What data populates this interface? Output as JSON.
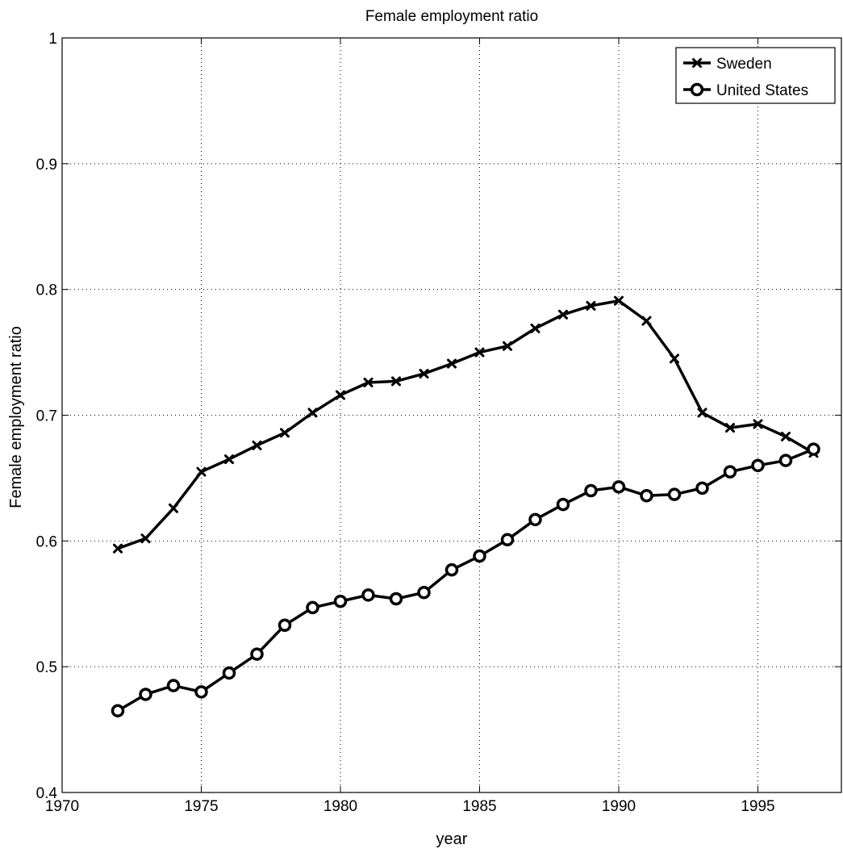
{
  "chart_data": {
    "type": "line",
    "title": "Female employment ratio",
    "xlabel": "year",
    "ylabel": "Female employment ratio",
    "xlim": [
      1970,
      1998
    ],
    "ylim": [
      0.4,
      1.0
    ],
    "xticks": [
      1970,
      1975,
      1980,
      1985,
      1990,
      1995
    ],
    "xtick_labels": [
      "1970",
      "1975",
      "1980",
      "1985",
      "1990",
      "1995"
    ],
    "yticks": [
      0.4,
      0.5,
      0.6,
      0.7,
      0.8,
      0.9,
      1.0
    ],
    "ytick_labels": [
      "0.4",
      "0.5",
      "0.6",
      "0.7",
      "0.8",
      "0.9",
      "1"
    ],
    "grid": true,
    "legend_position": "top-right",
    "x": [
      1972,
      1973,
      1974,
      1975,
      1976,
      1977,
      1978,
      1979,
      1980,
      1981,
      1982,
      1983,
      1984,
      1985,
      1986,
      1987,
      1988,
      1989,
      1990,
      1991,
      1992,
      1993,
      1994,
      1995,
      1996,
      1997
    ],
    "series": [
      {
        "name": "Sweden",
        "marker": "x",
        "color": "#000000",
        "values": [
          0.594,
          0.602,
          0.626,
          0.655,
          0.665,
          0.676,
          0.686,
          0.702,
          0.716,
          0.726,
          0.727,
          0.733,
          0.741,
          0.75,
          0.755,
          0.769,
          0.78,
          0.787,
          0.791,
          0.775,
          0.745,
          0.702,
          0.69,
          0.693,
          0.683,
          0.67
        ]
      },
      {
        "name": "United States",
        "marker": "o",
        "color": "#000000",
        "values": [
          0.465,
          0.478,
          0.485,
          0.48,
          0.495,
          0.51,
          0.533,
          0.547,
          0.552,
          0.557,
          0.554,
          0.559,
          0.577,
          0.588,
          0.601,
          0.617,
          0.629,
          0.64,
          0.643,
          0.636,
          0.637,
          0.642,
          0.655,
          0.66,
          0.664,
          0.673
        ]
      }
    ]
  }
}
